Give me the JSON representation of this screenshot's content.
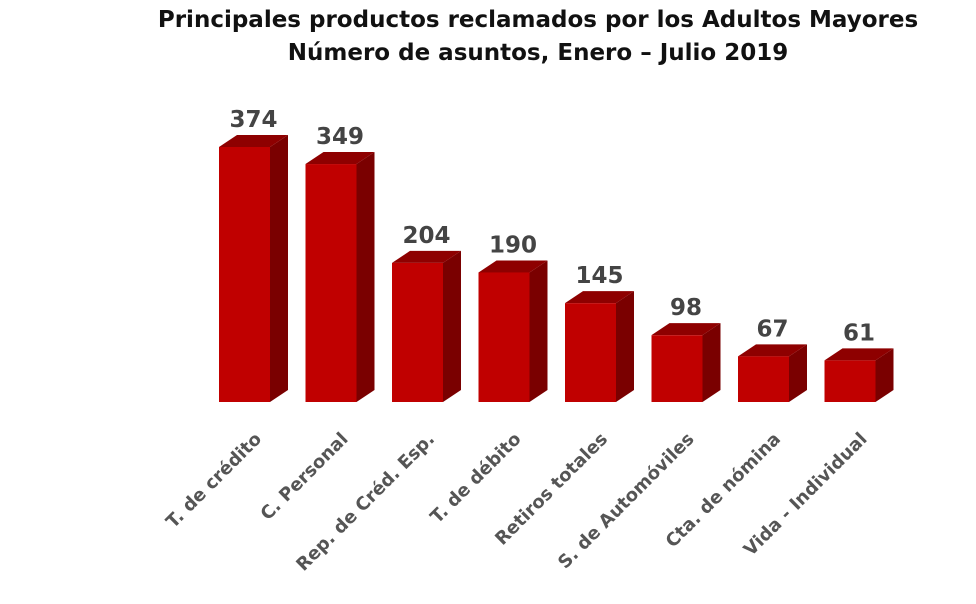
{
  "chart_data": {
    "type": "bar",
    "title": "Principales productos reclamados por los Adultos Mayores",
    "subtitle": "Número de asuntos, Enero – Julio 2019",
    "categories": [
      "T. de crédito",
      "C. Personal",
      "Rep. de Créd. Esp.",
      "T. de débito",
      "Retiros totales",
      "S. de Automóviles",
      "Cta. de nómina",
      "Vida - Individual"
    ],
    "values": [
      374,
      349,
      204,
      190,
      145,
      98,
      67,
      61
    ],
    "ylim": [
      0,
      374
    ],
    "xlabel": "",
    "ylabel": "",
    "grid": false,
    "colors": {
      "front": "#c00000",
      "side": "#7a0000",
      "top": "#8e0000",
      "value_label": "#444444",
      "category_label": "#555555"
    }
  }
}
